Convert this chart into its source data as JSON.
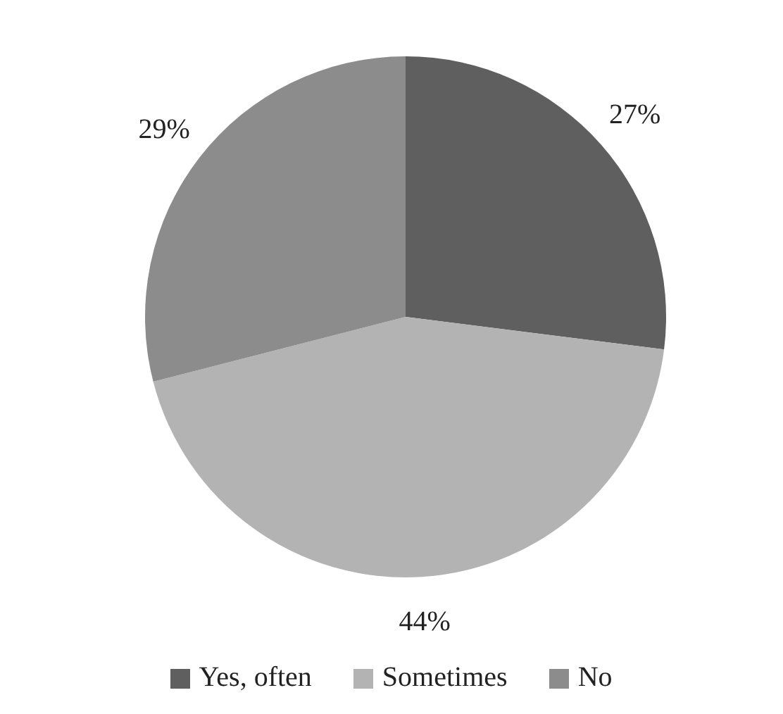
{
  "chart_data": {
    "type": "pie",
    "categories": [
      "Yes, often",
      "Sometimes",
      "No"
    ],
    "values": [
      27,
      44,
      29
    ],
    "colors": [
      "#5f5f5f",
      "#b3b3b3",
      "#8c8c8c"
    ],
    "value_labels": [
      "27%",
      "44%",
      "29%"
    ],
    "legend": "bottom"
  }
}
